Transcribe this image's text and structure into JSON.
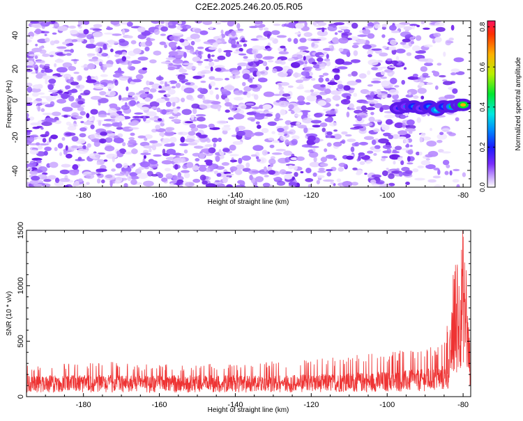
{
  "title": "C2E2.2025.246.20.05.R05",
  "chart_data": [
    {
      "type": "heatmap",
      "title": "C2E2.2025.246.20.05.R05",
      "xlabel": "Height of straight line (km)",
      "ylabel": "Frequency (Hz)",
      "xlim": [
        -195,
        -78
      ],
      "ylim": [
        -50,
        49
      ],
      "x_ticks": [
        -180,
        -160,
        -140,
        -120,
        -100,
        -80
      ],
      "y_ticks": [
        -40,
        -20,
        0,
        20,
        40
      ],
      "colorbar": {
        "label": "Normalized spectral amplitude",
        "range": [
          0,
          0.83
        ],
        "ticks": [
          0.0,
          0.2,
          0.4,
          0.6,
          0.8
        ],
        "tick_labels": [
          "0.0",
          "0.2",
          "0.4",
          "0.6",
          "0.8"
        ]
      },
      "noise_region": {
        "x_range": [
          -195,
          -84
        ],
        "amplitude_range": [
          0.0,
          0.1
        ]
      },
      "signal_track": {
        "x": [
          -97,
          -95,
          -93,
          -91,
          -89,
          -87,
          -85,
          -83,
          -81,
          -80
        ],
        "frequency": [
          -3,
          -2,
          -2,
          -3,
          -2,
          -4,
          -2,
          -2,
          -1,
          -1
        ],
        "amplitude": [
          0.22,
          0.28,
          0.3,
          0.24,
          0.34,
          0.42,
          0.3,
          0.46,
          0.56,
          0.66
        ]
      }
    },
    {
      "type": "line",
      "xlabel": "Height of straight line (km)",
      "ylabel": "SNR (10 * v/v)",
      "xlim": [
        -195,
        -78
      ],
      "ylim": [
        0,
        1500
      ],
      "x_ticks": [
        -180,
        -160,
        -140,
        -120,
        -100,
        -80
      ],
      "y_ticks": [
        0,
        500,
        1000,
        1500
      ],
      "series": [
        {
          "name": "SNR",
          "color": "#ee3333",
          "x": [
            -195,
            -190,
            -185,
            -180,
            -175,
            -170,
            -165,
            -160,
            -155,
            -150,
            -145,
            -140,
            -135,
            -130,
            -125,
            -120,
            -115,
            -110,
            -105,
            -100,
            -97,
            -94,
            -91,
            -89,
            -87,
            -85,
            -84,
            -83,
            -82,
            -81,
            -80,
            -79,
            -78
          ],
          "baseline": [
            150,
            145,
            150,
            148,
            152,
            150,
            148,
            150,
            148,
            150,
            148,
            150,
            148,
            150,
            152,
            155,
            160,
            165,
            170,
            175,
            180,
            185,
            190,
            200,
            210,
            220,
            260,
            600,
            650,
            900,
            1200,
            700,
            300
          ],
          "peak": [
            280,
            270,
            300,
            290,
            350,
            300,
            290,
            300,
            280,
            290,
            300,
            290,
            300,
            320,
            310,
            340,
            350,
            380,
            390,
            400,
            420,
            430,
            440,
            450,
            460,
            480,
            700,
            1150,
            1200,
            1400,
            1500,
            1300,
            800
          ]
        }
      ]
    }
  ]
}
